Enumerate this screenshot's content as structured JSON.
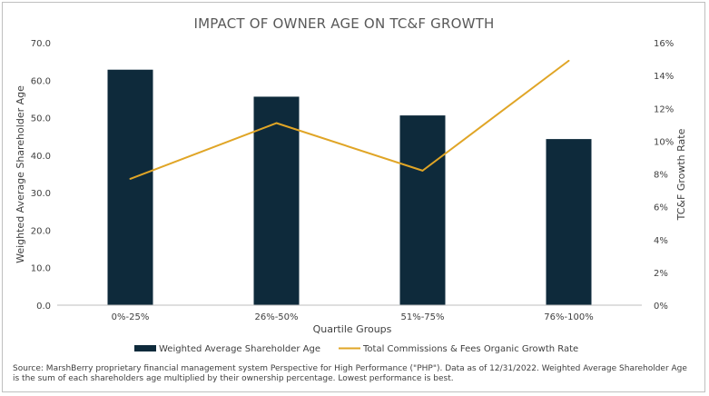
{
  "chart_data": {
    "type": "bar",
    "title": "IMPACT OF OWNER AGE ON TC&F GROWTH",
    "xlabel": "Quartile Groups",
    "ylabel": "Weighted Average Shareholder Age",
    "y2label": "TC&F Growth Rate",
    "categories": [
      "0%-25%",
      "26%-50%",
      "51%-75%",
      "76%-100%"
    ],
    "ylim": [
      0,
      70
    ],
    "y_ticks": [
      "0.0",
      "10.0",
      "20.0",
      "30.0",
      "40.0",
      "50.0",
      "60.0",
      "70.0"
    ],
    "y2lim": [
      0,
      16
    ],
    "y2_ticks": [
      "0%",
      "2%",
      "4%",
      "6%",
      "8%",
      "10%",
      "12%",
      "14%",
      "16%"
    ],
    "series": [
      {
        "name": "Weighted Average Shareholder Age",
        "type": "bar",
        "axis": "left",
        "color": "#0e2a3b",
        "values": [
          62.8,
          55.6,
          50.6,
          44.3
        ]
      },
      {
        "name": "Total Commissions & Fees Organic Growth Rate",
        "type": "line",
        "axis": "right",
        "color": "#e0a526",
        "values": [
          7.7,
          11.1,
          8.2,
          14.9
        ]
      }
    ],
    "legend": "bottom",
    "grid": false
  },
  "source_text": "Source: MarshBerry proprietary financial management system Perspective for High Performance (\"PHP\"). Data as of 12/31/2022. Weighted Average Shareholder Age is the sum of each shareholders age multiplied by their ownership percentage. Lowest performance is best."
}
